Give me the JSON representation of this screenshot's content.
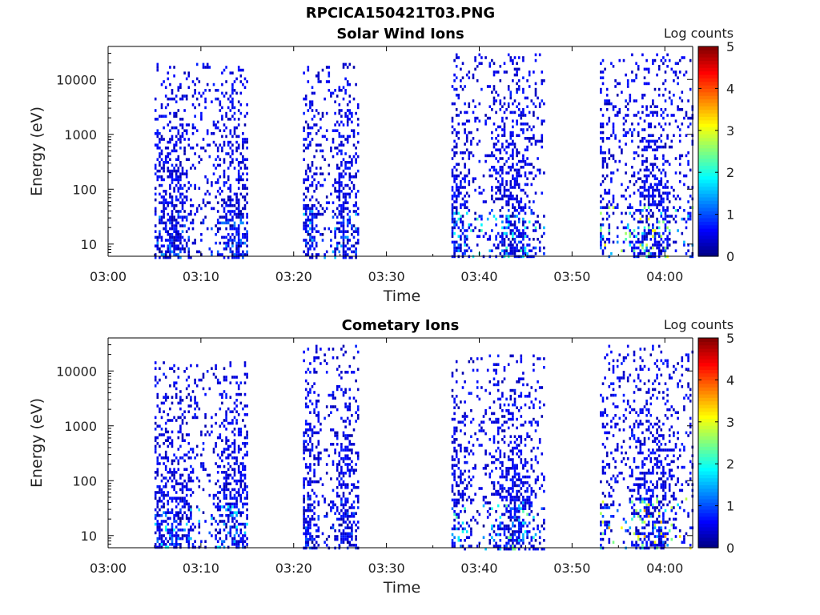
{
  "figure_title": "RPCICA150421T03.PNG",
  "chart_data": [
    {
      "type": "heatmap",
      "title": "Solar Wind Ions",
      "xlabel": "Time",
      "ylabel": "Energy (eV)",
      "x_ticks": [
        "03:00",
        "03:10",
        "03:20",
        "03:30",
        "03:40",
        "03:50",
        "04:00"
      ],
      "xlim": [
        "03:00",
        "04:03"
      ],
      "y_scale": "log",
      "y_ticks": [
        "10",
        "100",
        "1000",
        "10000"
      ],
      "ylim": [
        6,
        40000
      ],
      "colorbar": {
        "label": "Log counts",
        "range": [
          0,
          5
        ],
        "ticks": [
          "0",
          "1",
          "2",
          "3",
          "4",
          "5"
        ],
        "colormap": "jet"
      },
      "active_intervals": [
        {
          "start": "03:05",
          "end": "03:15",
          "emin": 6,
          "emax": 20000,
          "max_log_counts": 1.4
        },
        {
          "start": "03:21",
          "end": "03:27",
          "emin": 6,
          "emax": 20000,
          "max_log_counts": 1.7
        },
        {
          "start": "03:37",
          "end": "03:47",
          "emin": 6,
          "emax": 30000,
          "max_log_counts": 2.2
        },
        {
          "start": "03:53",
          "end": "04:03",
          "emin": 6,
          "emax": 30000,
          "max_log_counts": 3.2
        }
      ]
    },
    {
      "type": "heatmap",
      "title": "Cometary Ions",
      "xlabel": "Time",
      "ylabel": "Energy (eV)",
      "x_ticks": [
        "03:00",
        "03:10",
        "03:20",
        "03:30",
        "03:40",
        "03:50",
        "04:00"
      ],
      "xlim": [
        "03:00",
        "04:03"
      ],
      "y_scale": "log",
      "y_ticks": [
        "10",
        "100",
        "1000",
        "10000"
      ],
      "ylim": [
        6,
        40000
      ],
      "colorbar": {
        "label": "Log counts",
        "range": [
          0,
          5
        ],
        "ticks": [
          "0",
          "1",
          "2",
          "3",
          "4",
          "5"
        ],
        "colormap": "jet"
      },
      "active_intervals": [
        {
          "start": "03:05",
          "end": "03:15",
          "emin": 6,
          "emax": 15000,
          "max_log_counts": 2.0
        },
        {
          "start": "03:21",
          "end": "03:27",
          "emin": 6,
          "emax": 30000,
          "max_log_counts": 1.2
        },
        {
          "start": "03:37",
          "end": "03:47",
          "emin": 6,
          "emax": 20000,
          "max_log_counts": 2.5
        },
        {
          "start": "03:53",
          "end": "04:03",
          "emin": 6,
          "emax": 30000,
          "max_log_counts": 3.7
        }
      ]
    }
  ]
}
